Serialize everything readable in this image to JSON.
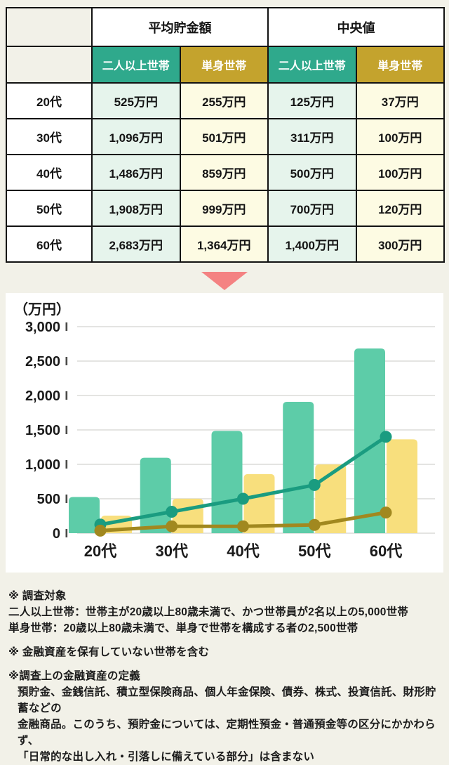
{
  "page": {
    "background_color": "#F2F1E8"
  },
  "table": {
    "group_headers": [
      {
        "label": "平均貯金額"
      },
      {
        "label": "中央値"
      }
    ],
    "sub_headers": [
      {
        "label": "二人以上世帯",
        "color": "#2FA98C"
      },
      {
        "label": "単身世帯",
        "color": "#C4A32D"
      },
      {
        "label": "二人以上世帯",
        "color": "#2FA98C"
      },
      {
        "label": "単身世帯",
        "color": "#C4A32D"
      }
    ],
    "rows": [
      {
        "label": "20代",
        "values": [
          "525万円",
          "255万円",
          "125万円",
          "37万円"
        ]
      },
      {
        "label": "30代",
        "values": [
          "1,096万円",
          "501万円",
          "311万円",
          "100万円"
        ]
      },
      {
        "label": "40代",
        "values": [
          "1,486万円",
          "859万円",
          "500万円",
          "100万円"
        ]
      },
      {
        "label": "50代",
        "values": [
          "1,908万円",
          "999万円",
          "700万円",
          "120万円"
        ]
      },
      {
        "label": "60代",
        "values": [
          "2,683万円",
          "1,364万円",
          "1,400万円",
          "300万円"
        ]
      }
    ]
  },
  "arrow": {
    "color": "#F48282"
  },
  "chart_data": {
    "type": "bar",
    "title": "",
    "unit_label": "（万円）",
    "categories": [
      "20代",
      "30代",
      "40代",
      "50代",
      "60代"
    ],
    "ylim": [
      0,
      3000
    ],
    "ytick_step": 500,
    "ytick_labels": [
      "0",
      "500",
      "1,000",
      "1,500",
      "2,000",
      "2,500",
      "3,000"
    ],
    "grid": true,
    "legend": "none",
    "series": [
      {
        "name": "平均貯金額 二人以上世帯",
        "type": "bar",
        "color": "#5DCCA8",
        "values": [
          525,
          1096,
          1486,
          1908,
          2683
        ]
      },
      {
        "name": "平均貯金額 単身世帯",
        "type": "bar",
        "color": "#F8DF7D",
        "values": [
          255,
          501,
          859,
          999,
          1364
        ]
      },
      {
        "name": "中央値 二人以上世帯",
        "type": "line",
        "color": "#1A9C80",
        "values": [
          125,
          311,
          500,
          700,
          1400
        ]
      },
      {
        "name": "中央値 単身世帯",
        "type": "line",
        "color": "#A1881F",
        "values": [
          37,
          100,
          100,
          120,
          300
        ]
      }
    ]
  },
  "notes": [
    {
      "lines": [
        "※ 調査対象",
        "二人以上世帯：世帯主が20歳以上80歳未満で、かつ世帯員が2名以上の5,000世帯",
        "単身世帯：20歳以上80歳未満で、単身で世帯を構成する者の2,500世帯"
      ]
    },
    {
      "lines": [
        "※ 金融資産を保有していない世帯を含む"
      ]
    },
    {
      "lines": [
        "※調査上の金融資産の定義",
        "預貯金、金銭信託、積立型保険商品、個人年金保険、債券、株式、投資信託、財形貯蓄などの",
        "金融商品。このうち、預貯金については、定期性預金・普通預金等の区分にかかわらず、",
        "「日常的な出し入れ・引落しに備えている部分」は含まない"
      ]
    }
  ]
}
